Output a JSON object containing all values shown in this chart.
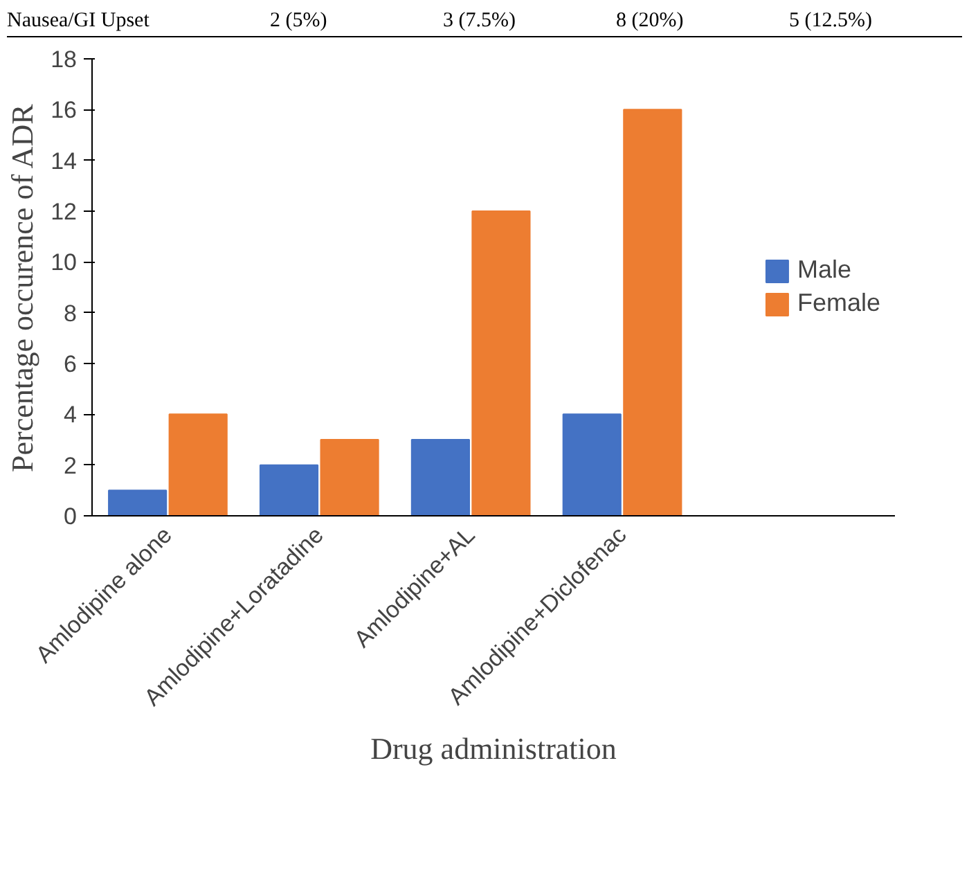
{
  "chart_data": {
    "type": "bar",
    "xlabel": "Drug administration",
    "ylabel": "Percentage occurence of ADR",
    "categories": [
      "Amlodipine alone",
      "Amlodipine+Loratadine",
      "Amlodipine+AL",
      "Amlodipine+Diclofenac"
    ],
    "series": [
      {
        "name": "Male",
        "color": "#4472c4",
        "values": [
          1,
          2,
          3,
          4
        ]
      },
      {
        "name": "Female",
        "color": "#ed7d31",
        "values": [
          4,
          3,
          12,
          16
        ]
      }
    ],
    "ylim": [
      0,
      18
    ],
    "yticks": [
      0,
      2,
      4,
      6,
      8,
      10,
      12,
      14,
      16,
      18
    ],
    "grid": false,
    "legend": "right",
    "annotations": [
      "Nausea/GI Upset",
      "2 (5%)",
      "3 (7.5%)",
      "8 (20%)",
      "5 (12.5%)"
    ]
  }
}
